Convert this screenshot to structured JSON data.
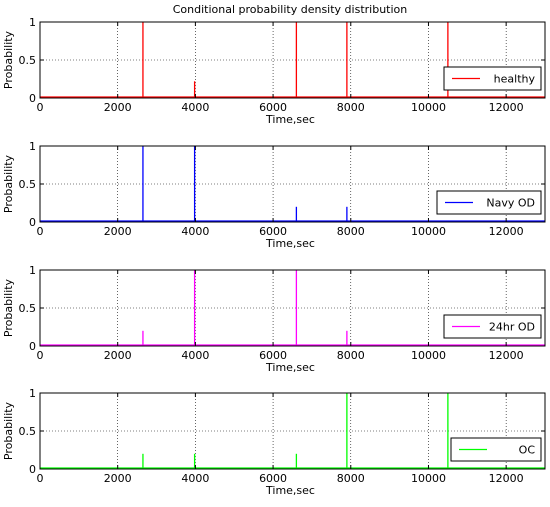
{
  "figure_title": "Conditional probability density distribution",
  "chart_data": [
    {
      "type": "line",
      "title": "Conditional probability density distribution",
      "xlabel": "Time,sec",
      "ylabel": "Probability",
      "xlim": [
        0,
        13000
      ],
      "ylim": [
        0,
        1
      ],
      "xticks": [
        0,
        2000,
        4000,
        6000,
        8000,
        10000,
        12000
      ],
      "yticks": [
        0,
        0.5,
        1
      ],
      "grid": true,
      "legend_position": "right",
      "series": [
        {
          "name": "healthy",
          "color": "#ff0000",
          "spikes": [
            {
              "x": 2650,
              "y": 1
            },
            {
              "x": 3980,
              "y": 0.22
            },
            {
              "x": 6600,
              "y": 1
            },
            {
              "x": 7900,
              "y": 1
            },
            {
              "x": 10500,
              "y": 1
            }
          ]
        }
      ]
    },
    {
      "type": "line",
      "title": "",
      "xlabel": "Time,sec",
      "ylabel": "Probability",
      "xlim": [
        0,
        13000
      ],
      "ylim": [
        0,
        1
      ],
      "xticks": [
        0,
        2000,
        4000,
        6000,
        8000,
        10000,
        12000
      ],
      "yticks": [
        0,
        0.5,
        1
      ],
      "grid": true,
      "legend_position": "right",
      "series": [
        {
          "name": "Navy OD",
          "color": "#0000ff",
          "spikes": [
            {
              "x": 2650,
              "y": 1
            },
            {
              "x": 3980,
              "y": 1
            },
            {
              "x": 6600,
              "y": 0.2
            },
            {
              "x": 7900,
              "y": 0.2
            }
          ]
        }
      ]
    },
    {
      "type": "line",
      "title": "",
      "xlabel": "Time,sec",
      "ylabel": "Probability",
      "xlim": [
        0,
        13000
      ],
      "ylim": [
        0,
        1
      ],
      "xticks": [
        0,
        2000,
        4000,
        6000,
        8000,
        10000,
        12000
      ],
      "yticks": [
        0,
        0.5,
        1
      ],
      "grid": true,
      "legend_position": "right",
      "series": [
        {
          "name": "24hr OD",
          "color": "#ff00ff",
          "spikes": [
            {
              "x": 2650,
              "y": 0.2
            },
            {
              "x": 3980,
              "y": 1
            },
            {
              "x": 6600,
              "y": 1
            },
            {
              "x": 7900,
              "y": 0.2
            }
          ]
        }
      ]
    },
    {
      "type": "line",
      "title": "",
      "xlabel": "Time,sec",
      "ylabel": "Probability",
      "xlim": [
        0,
        13000
      ],
      "ylim": [
        0,
        1
      ],
      "xticks": [
        0,
        2000,
        4000,
        6000,
        8000,
        10000,
        12000
      ],
      "yticks": [
        0,
        0.5,
        1
      ],
      "grid": true,
      "legend_position": "right",
      "series": [
        {
          "name": "OC",
          "color": "#00ff00",
          "spikes": [
            {
              "x": 2650,
              "y": 0.2
            },
            {
              "x": 3980,
              "y": 0.2
            },
            {
              "x": 6600,
              "y": 0.2
            },
            {
              "x": 7900,
              "y": 1
            },
            {
              "x": 10500,
              "y": 1
            }
          ]
        }
      ]
    }
  ]
}
